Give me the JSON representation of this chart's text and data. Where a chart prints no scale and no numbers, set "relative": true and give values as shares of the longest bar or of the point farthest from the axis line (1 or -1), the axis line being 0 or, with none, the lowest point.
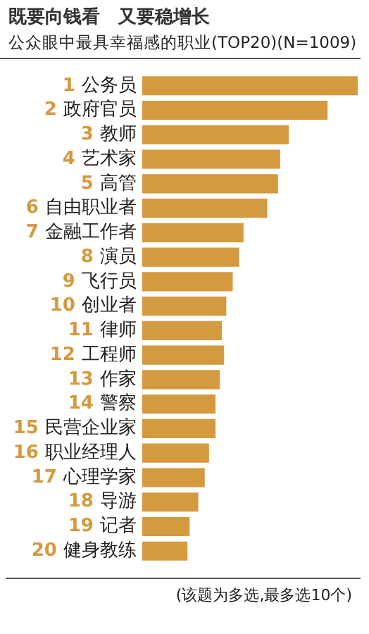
{
  "chart_data": {
    "type": "bar",
    "orientation": "horizontal",
    "relative": true,
    "title": "既要向钱看　又要稳增长",
    "subtitle": "公众眼中最具幸福感的职业(TOP20)(N=1009)",
    "categories": [
      "1 公务员",
      "2 政府官员",
      "3 教师",
      "4 艺术家",
      "5 高管",
      "6 自由职业者",
      "7 金融工作者",
      "8 演员",
      "9 飞行员",
      "10 创业者",
      "11 律师",
      "12 工程师",
      "13 作家",
      "14 警察",
      "15 民营企业家",
      "16 职业经理人",
      "17 心理学家",
      "18 导游",
      "19 记者",
      "20 健身教练"
    ],
    "values": [
      1,
      0.86,
      0.68,
      0.64,
      0.63,
      0.58,
      0.47,
      0.45,
      0.42,
      0.39,
      0.37,
      0.38,
      0.36,
      0.34,
      0.34,
      0.31,
      0.29,
      0.26,
      0.22,
      0.21
    ],
    "color": "#d49a3f",
    "annotations": [
      "(该题为多选,最多选10个)"
    ]
  }
}
